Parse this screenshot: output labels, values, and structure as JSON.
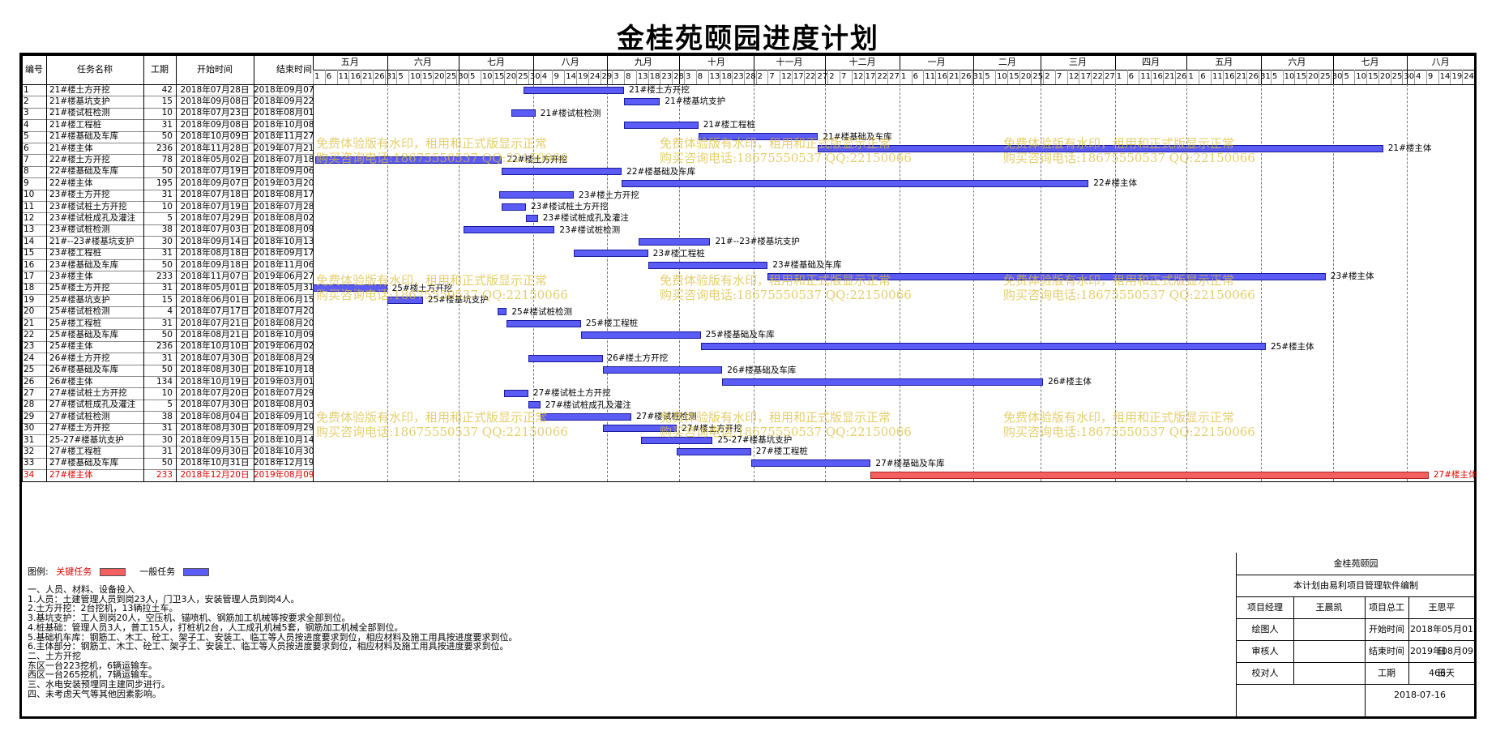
{
  "title": "金桂苑颐园进度计划",
  "headers": {
    "no": "编号",
    "name": "任务名称",
    "dur": "工期",
    "start": "开始时间",
    "end": "结束时间"
  },
  "months": [
    "五月",
    "六月",
    "七月",
    "八月",
    "九月",
    "十月",
    "十一月",
    "十二月",
    "一月",
    "二月",
    "三月",
    "四月",
    "五月",
    "六月",
    "七月",
    "八月"
  ],
  "days": "1 6 11 16 21 26 31 5 10 15 20 25 30 5 10 15 20 25 30 4 9 14 19 24 29 3 8 13 18 23 28 3 8 13 18 23 28 2 7 12 17 22 27 2 7 12 17 22 27 1 6 11 16 21 26 31 5 10 15 20 25 2 7 12 17 22 27 1 6 11 16 21 26 1 6 11 16 21 26 31 5 10 15 20 25 30 5 10 15 20 25 30 4 9 14 19 24",
  "legend": {
    "label": "图例:",
    "critical": "关键任务",
    "normal": "一般任务",
    "critical_color": "#f46060",
    "normal_color": "#5b5bf5"
  },
  "watermark": {
    "line1": "免费体验版有水印，租用和正式版显示正常",
    "line2": "购买咨询电话:18675550537 QQ:22150066"
  },
  "notes": "一、人员、材料、设备投入\n1.人员：土建管理人员到岗23人，门卫3人，安装管理人员到岗4人。\n2.土方开挖：2台挖机，13辆拉土车。\n3.基坑支护：工人到岗20人，空压机、锚喷机、钢筋加工机械等按要求全部到位。\n4.桩基础：管理人员3人，普工15人，打桩机2台，人工成孔机械5套，钢筋加工机械全部到位。\n5.基础机车库：钢筋工、木工、砼工、架子工、安装工、临工等人员按进度要求到位，相应材料及施工用具按进度要求到位。\n6.主体部分：钢筋工、木工、砼工、架子工、安装工、临工等人员按进度要求到位，相应材料及施工用具按进度要求到位。\n二、土方开挖\n东区一台223挖机，6辆运输车。\n西区一台265挖机，7辆运输车。\n三、水电安装预埋同主建同步进行。\n四、未考虑天气等其他因素影响。",
  "sign": {
    "project": "金桂苑颐园",
    "software": "本计划由易利项目管理软件编制",
    "manager_label": "项目经理",
    "manager": "王晨凯",
    "chief_label": "项目总工",
    "chief": "王思平",
    "drawer_label": "绘图人",
    "drawer": "",
    "start_label": "开始时间",
    "start": "2018年05月01日",
    "reviewer_label": "审核人",
    "reviewer": "",
    "end_label": "结束时间",
    "end": "2019年08月09日",
    "checker_label": "校对人",
    "checker": "",
    "dur_label": "工期",
    "dur": "466天",
    "date": "2018-07-16"
  },
  "chart_data": {
    "type": "gantt",
    "title": "金桂苑颐园进度计划",
    "x_range": [
      "2018-05-01",
      "2019-08-29"
    ],
    "tasks": [
      {
        "no": "1",
        "name": "21#楼土方开挖",
        "dur": "42",
        "start": "2018年07月28日",
        "end": "2018年09月07日",
        "s": "2018-07-28",
        "e": "2018-09-07",
        "crit": false
      },
      {
        "no": "2",
        "name": "21#楼基坑支护",
        "dur": "15",
        "start": "2018年09月08日",
        "end": "2018年09月22日",
        "s": "2018-09-08",
        "e": "2018-09-22",
        "crit": false
      },
      {
        "no": "3",
        "name": "21#楼试桩检测",
        "dur": "10",
        "start": "2018年07月23日",
        "end": "2018年08月01日",
        "s": "2018-07-23",
        "e": "2018-08-01",
        "crit": false
      },
      {
        "no": "4",
        "name": "21#楼工程桩",
        "dur": "31",
        "start": "2018年09月08日",
        "end": "2018年10月08日",
        "s": "2018-09-08",
        "e": "2018-10-08",
        "crit": false
      },
      {
        "no": "5",
        "name": "21#楼基础及车库",
        "dur": "50",
        "start": "2018年10月09日",
        "end": "2018年11月27日",
        "s": "2018-10-09",
        "e": "2018-11-27",
        "crit": false
      },
      {
        "no": "6",
        "name": "21#楼主体",
        "dur": "236",
        "start": "2018年11月28日",
        "end": "2019年07月21日",
        "s": "2018-11-28",
        "e": "2019-07-21",
        "crit": false
      },
      {
        "no": "7",
        "name": "22#楼土方开挖",
        "dur": "78",
        "start": "2018年05月02日",
        "end": "2018年07月18日",
        "s": "2018-05-02",
        "e": "2018-07-18",
        "crit": false
      },
      {
        "no": "8",
        "name": "22#楼基础及车库",
        "dur": "50",
        "start": "2018年07月19日",
        "end": "2018年09月06日",
        "s": "2018-07-19",
        "e": "2018-09-06",
        "crit": false
      },
      {
        "no": "9",
        "name": "22#楼主体",
        "dur": "195",
        "start": "2018年09月07日",
        "end": "2019年03月20日",
        "s": "2018-09-07",
        "e": "2019-03-20",
        "crit": false
      },
      {
        "no": "10",
        "name": "23#楼土方开挖",
        "dur": "31",
        "start": "2018年07月18日",
        "end": "2018年08月17日",
        "s": "2018-07-18",
        "e": "2018-08-17",
        "crit": false
      },
      {
        "no": "11",
        "name": "23#楼试桩土方开挖",
        "dur": "10",
        "start": "2018年07月19日",
        "end": "2018年07月28日",
        "s": "2018-07-19",
        "e": "2018-07-28",
        "crit": false
      },
      {
        "no": "12",
        "name": "23#楼试桩成孔及灌注",
        "dur": "5",
        "start": "2018年07月29日",
        "end": "2018年08月02日",
        "s": "2018-07-29",
        "e": "2018-08-02",
        "crit": false
      },
      {
        "no": "13",
        "name": "23#楼试桩检测",
        "dur": "38",
        "start": "2018年07月03日",
        "end": "2018年08月09日",
        "s": "2018-07-03",
        "e": "2018-08-09",
        "crit": false
      },
      {
        "no": "14",
        "name": "21#--23#楼基坑支护",
        "dur": "30",
        "start": "2018年09月14日",
        "end": "2018年10月13日",
        "s": "2018-09-14",
        "e": "2018-10-13",
        "crit": false
      },
      {
        "no": "15",
        "name": "23#楼工程桩",
        "dur": "31",
        "start": "2018年08月18日",
        "end": "2018年09月17日",
        "s": "2018-08-18",
        "e": "2018-09-17",
        "crit": false
      },
      {
        "no": "16",
        "name": "23#楼基础及车库",
        "dur": "50",
        "start": "2018年09月18日",
        "end": "2018年11月06日",
        "s": "2018-09-18",
        "e": "2018-11-06",
        "crit": false
      },
      {
        "no": "17",
        "name": "23#楼主体",
        "dur": "233",
        "start": "2018年11月07日",
        "end": "2019年06月27日",
        "s": "2018-11-07",
        "e": "2019-06-27",
        "crit": false
      },
      {
        "no": "18",
        "name": "25#楼土方开挖",
        "dur": "31",
        "start": "2018年05月01日",
        "end": "2018年05月31日",
        "s": "2018-05-01",
        "e": "2018-05-31",
        "crit": false
      },
      {
        "no": "19",
        "name": "25#楼基坑支护",
        "dur": "15",
        "start": "2018年06月01日",
        "end": "2018年06月15日",
        "s": "2018-06-01",
        "e": "2018-06-15",
        "crit": false
      },
      {
        "no": "20",
        "name": "25#楼试桩检测",
        "dur": "4",
        "start": "2018年07月17日",
        "end": "2018年07月20日",
        "s": "2018-07-17",
        "e": "2018-07-20",
        "crit": false
      },
      {
        "no": "21",
        "name": "25#楼工程桩",
        "dur": "31",
        "start": "2018年07月21日",
        "end": "2018年08月20日",
        "s": "2018-07-21",
        "e": "2018-08-20",
        "crit": false
      },
      {
        "no": "22",
        "name": "25#楼基础及车库",
        "dur": "50",
        "start": "2018年08月21日",
        "end": "2018年10月09日",
        "s": "2018-08-21",
        "e": "2018-10-09",
        "crit": false
      },
      {
        "no": "23",
        "name": "25#楼主体",
        "dur": "236",
        "start": "2018年10月10日",
        "end": "2019年06月02日",
        "s": "2018-10-10",
        "e": "2019-06-02",
        "crit": false
      },
      {
        "no": "24",
        "name": "26#楼土方开挖",
        "dur": "31",
        "start": "2018年07月30日",
        "end": "2018年08月29日",
        "s": "2018-07-30",
        "e": "2018-08-29",
        "crit": false
      },
      {
        "no": "25",
        "name": "26#楼基础及车库",
        "dur": "50",
        "start": "2018年08月30日",
        "end": "2018年10月18日",
        "s": "2018-08-30",
        "e": "2018-10-18",
        "crit": false
      },
      {
        "no": "26",
        "name": "26#楼主体",
        "dur": "134",
        "start": "2018年10月19日",
        "end": "2019年03月01日",
        "s": "2018-10-19",
        "e": "2019-03-01",
        "crit": false
      },
      {
        "no": "27",
        "name": "27#楼试桩土方开挖",
        "dur": "10",
        "start": "2018年07月20日",
        "end": "2018年07月29日",
        "s": "2018-07-20",
        "e": "2018-07-29",
        "crit": false
      },
      {
        "no": "28",
        "name": "27#楼试桩成孔及灌注",
        "dur": "5",
        "start": "2018年07月30日",
        "end": "2018年08月03日",
        "s": "2018-07-30",
        "e": "2018-08-03",
        "crit": false
      },
      {
        "no": "29",
        "name": "27#楼试桩检测",
        "dur": "38",
        "start": "2018年08月04日",
        "end": "2018年09月10日",
        "s": "2018-08-04",
        "e": "2018-09-10",
        "crit": false
      },
      {
        "no": "30",
        "name": "27#楼土方开挖",
        "dur": "31",
        "start": "2018年08月30日",
        "end": "2018年09月29日",
        "s": "2018-08-30",
        "e": "2018-09-29",
        "crit": false
      },
      {
        "no": "31",
        "name": "25-27#楼基坑支护",
        "dur": "30",
        "start": "2018年09月15日",
        "end": "2018年10月14日",
        "s": "2018-09-15",
        "e": "2018-10-14",
        "crit": false
      },
      {
        "no": "32",
        "name": "27#楼工程桩",
        "dur": "31",
        "start": "2018年09月30日",
        "end": "2018年10月30日",
        "s": "2018-09-30",
        "e": "2018-10-30",
        "crit": false
      },
      {
        "no": "33",
        "name": "27#楼基础及车库",
        "dur": "50",
        "start": "2018年10月31日",
        "end": "2018年12月19日",
        "s": "2018-10-31",
        "e": "2018-12-19",
        "crit": false
      },
      {
        "no": "34",
        "name": "27#楼主体",
        "dur": "233",
        "start": "2018年12月20日",
        "end": "2019年08月09日",
        "s": "2018-12-20",
        "e": "2019-08-09",
        "crit": true
      }
    ]
  }
}
